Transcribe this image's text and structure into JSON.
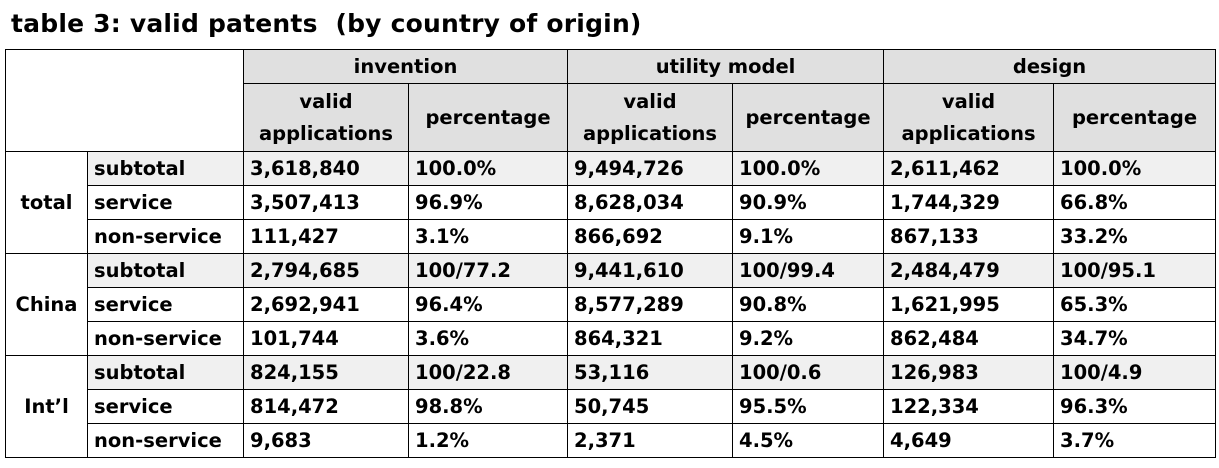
{
  "chart_data": {
    "type": "table",
    "title": "table 3: valid patents  (by country of origin)",
    "column_groups": [
      "invention",
      "utility model",
      "design"
    ],
    "subcolumns": [
      "valid applications",
      "percentage"
    ],
    "subcolumn_lines": [
      [
        "valid",
        "applications"
      ],
      [
        "percentage"
      ]
    ],
    "groups": [
      {
        "name": "total",
        "rows": [
          {
            "label": "subtotal",
            "cells": [
              "3,618,840",
              "100.0%",
              "9,494,726",
              "100.0%",
              "2,611,462",
              "100.0%"
            ]
          },
          {
            "label": "service",
            "cells": [
              "3,507,413",
              "96.9%",
              "8,628,034",
              "90.9%",
              "1,744,329",
              "66.8%"
            ]
          },
          {
            "label": "non-service",
            "cells": [
              "111,427",
              "3.1%",
              "866,692",
              "9.1%",
              "867,133",
              "33.2%"
            ]
          }
        ]
      },
      {
        "name": "China",
        "rows": [
          {
            "label": "subtotal",
            "cells": [
              "2,794,685",
              "100/77.2",
              "9,441,610",
              "100/99.4",
              "2,484,479",
              "100/95.1"
            ]
          },
          {
            "label": "service",
            "cells": [
              "2,692,941",
              "96.4%",
              "8,577,289",
              "90.8%",
              "1,621,995",
              "65.3%"
            ]
          },
          {
            "label": "non-service",
            "cells": [
              "101,744",
              "3.6%",
              "864,321",
              "9.2%",
              "862,484",
              "34.7%"
            ]
          }
        ]
      },
      {
        "name": "Int’l",
        "rows": [
          {
            "label": "subtotal",
            "cells": [
              "824,155",
              "100/22.8",
              "53,116",
              "100/0.6",
              "126,983",
              "100/4.9"
            ]
          },
          {
            "label": "service",
            "cells": [
              "814,472",
              "98.8%",
              "50,745",
              "95.5%",
              "122,334",
              "96.3%"
            ]
          },
          {
            "label": "non-service",
            "cells": [
              "9,683",
              "1.2%",
              "2,371",
              "4.5%",
              "4,649",
              "3.7%"
            ]
          }
        ]
      }
    ]
  }
}
